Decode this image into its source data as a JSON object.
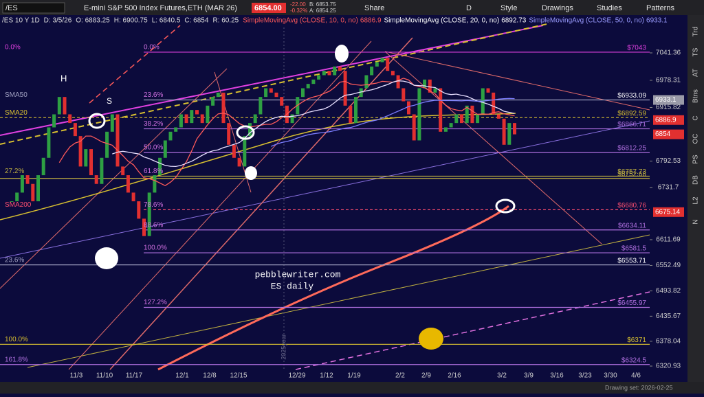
{
  "toolbar": {
    "symbol": "/ES",
    "description": "E-mini S&P 500 Index Futures,ETH (MAR 26)",
    "last": "6854.00",
    "change": "-22.00",
    "change_pct": "-0.32%",
    "bid": "B: 6853.75",
    "ask": "A: 6854.25",
    "share": "Share",
    "period": "D",
    "style": "Style",
    "drawings": "Drawings",
    "studies": "Studies",
    "patterns": "Patterns"
  },
  "header": {
    "items": [
      "/ES 10 Y 1D",
      "D: 3/5/26",
      "O: 6883.25",
      "H: 6900.75",
      "L: 6840.5",
      "C: 6854",
      "R: 60.25"
    ],
    "studies": [
      {
        "name": "SimpleMovingAvg (CLOSE, 10, 0, no)",
        "value": "6886.9",
        "color": "#ff5a5a"
      },
      {
        "name": "SimpleMovingAvg (CLOSE, 20, 0, no)",
        "value": "6892.73",
        "color": "#ffffff"
      },
      {
        "name": "SimpleMovingAvg (CLOSE, 50, 0, no)",
        "value": "6933.1",
        "color": "#9a9cff"
      }
    ]
  },
  "chart": {
    "price_ticks": [
      7041.36,
      6978.31,
      6915.82,
      6792.53,
      6731.7,
      6611.69,
      6552.49,
      6493.82,
      6435.67,
      6378.04,
      6320.93
    ],
    "dates": [
      "11/3",
      "11/10",
      "11/17",
      "12/1",
      "12/8",
      "12/15",
      "12/29",
      "1/12",
      "1/19",
      "2/2",
      "2/9",
      "2/16",
      "3/2",
      "3/9",
      "3/16",
      "3/23",
      "3/30",
      "4/6"
    ],
    "closes": [
      6700,
      6720,
      6760,
      6740,
      6700,
      6760,
      6800,
      6870,
      6900,
      6940,
      6900,
      6880,
      6850,
      6780,
      6820,
      6760,
      6740,
      6800,
      6860,
      6900,
      6780,
      6760,
      6720,
      6700,
      6660,
      6620,
      6720,
      6760,
      6800,
      6840,
      6860,
      6870,
      6900,
      6880,
      6910,
      6900,
      6880,
      6920,
      6940,
      6950,
      6880,
      6830,
      6800,
      6780,
      6850,
      6880,
      6900,
      6940,
      6960,
      6950,
      6940,
      6920,
      6880,
      6900,
      6940,
      6960,
      6970,
      6980,
      6990,
      7000,
      6990,
      7010,
      7000,
      6920,
      6880,
      6940,
      6960,
      6990,
      7010,
      7020,
      7030,
      7000,
      6990,
      6960,
      6930,
      6900,
      6840,
      6960,
      6980,
      6950,
      6960,
      6860,
      6870,
      6880,
      6900,
      6880,
      6920,
      6880,
      6900,
      6960,
      6950,
      6900,
      6890,
      6830,
      6880,
      6854
    ],
    "levels": [
      {
        "value": 7043,
        "label": "$7043",
        "color": "#e040e0",
        "outer": "0.0%",
        "inner": "0.0%"
      },
      {
        "value": 6933.09,
        "label": "$6933.09",
        "color": "#a0a0c0",
        "outer": "SMA50",
        "inner": "23.6%"
      },
      {
        "value": 6892.59,
        "label": "$6892.59",
        "color": "#d8c030",
        "outer": "SMA20"
      },
      {
        "value": 6866.71,
        "label": "$6866.71",
        "color": "#b070e0",
        "inner": "38.2%"
      },
      {
        "value": 6812.25,
        "label": "$6812.25",
        "color": "#b070e0",
        "inner": "50.0%"
      },
      {
        "value": 6757.73,
        "label": "$6757.73",
        "color": "#c0b040",
        "outer": "27.2%",
        "inner": "61.8%"
      },
      {
        "value": 6752.68,
        "label": "$6752.68",
        "color": "#c0b040"
      },
      {
        "value": 6680.76,
        "label": "$6680.76",
        "color": "#ff5070",
        "outer": "SMA200",
        "inner": "78.6%"
      },
      {
        "value": 6634.11,
        "label": "$6634.11",
        "color": "#b070e0",
        "inner": "88.6%"
      },
      {
        "value": 6581.5,
        "label": "$6581.5",
        "color": "#b070e0",
        "inner": "100.0%"
      },
      {
        "value": 6553.71,
        "label": "$6553.71",
        "color": "#a0a0c0",
        "outer": "23.6%"
      },
      {
        "value": 6455.97,
        "label": "$6455.97",
        "color": "#b070e0",
        "inner": "127.2%"
      },
      {
        "value": 6371,
        "label": "$6371",
        "color": "#d8c030",
        "outer": "100.0%"
      },
      {
        "value": 6324.5,
        "label": "$6324.5",
        "color": "#b070e0",
        "outer": "161.8%"
      }
    ],
    "badges": [
      {
        "value": 6933.1,
        "color": "#9a9aa8"
      },
      {
        "value": 6886.9,
        "color": "#e23030"
      },
      {
        "value": 6854,
        "color": "#e23030"
      },
      {
        "value": 6675.14,
        "color": "#e23030"
      }
    ],
    "annotations": {
      "site": "pebblewriter.com",
      "subtitle": "ES daily",
      "head": "H",
      "shoulder": "S",
      "year": "2025year"
    }
  },
  "side_tabs": [
    "Trd",
    "TS",
    "AT",
    "Btns",
    "C",
    "OC",
    "PS",
    "DB",
    "L2",
    "N"
  ],
  "footer": {
    "drawing_set": "Drawing set: 2026-02-25"
  }
}
